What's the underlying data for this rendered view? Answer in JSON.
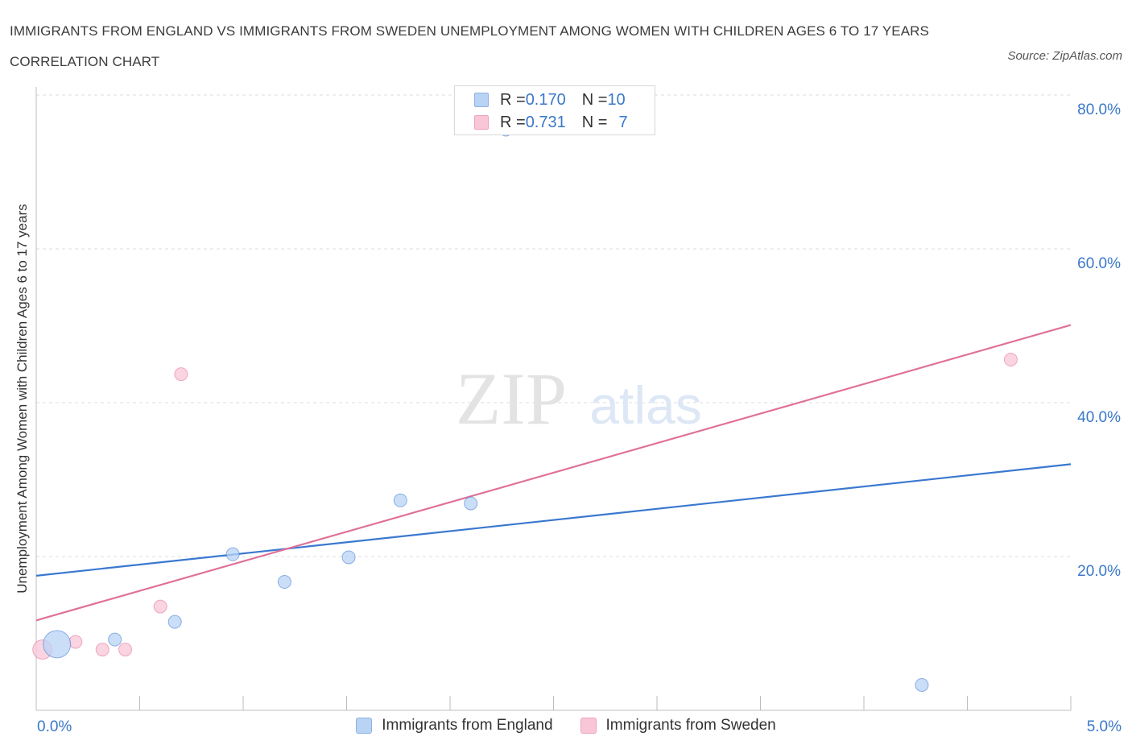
{
  "header": {
    "title": "IMMIGRANTS FROM ENGLAND VS IMMIGRANTS FROM SWEDEN UNEMPLOYMENT AMONG WOMEN WITH CHILDREN AGES 6 TO 17 YEARS CORRELATION CHART",
    "source": "Source: ZipAtlas.com"
  },
  "watermark": {
    "zip": "ZIP",
    "atlas": "atlas"
  },
  "legend_stats": [
    {
      "r_label": "R = ",
      "r_value": "0.170",
      "n_label": "N = ",
      "n_value": "10",
      "color": "#a9c7f0"
    },
    {
      "r_label": "R = ",
      "r_value": "0.731",
      "n_label": "N = ",
      "n_value": "7",
      "color": "#f6b8cb"
    }
  ],
  "chart_data": {
    "type": "scatter",
    "title": "IMMIGRANTS FROM ENGLAND VS IMMIGRANTS FROM SWEDEN UNEMPLOYMENT AMONG WOMEN WITH CHILDREN AGES 6 TO 17 YEARS CORRELATION CHART",
    "xlabel": "",
    "ylabel": "Unemployment Among Women with Children Ages 6 to 17 years",
    "xlim": [
      0,
      5
    ],
    "ylim": [
      0,
      80
    ],
    "x_tick_labels": [
      "0.0%",
      "5.0%"
    ],
    "y_ticks": [
      20,
      40,
      60,
      80
    ],
    "y_tick_labels": [
      "20.0%",
      "40.0%",
      "60.0%",
      "80.0%"
    ],
    "grid": true,
    "legend_position": "bottom",
    "series": [
      {
        "name": "Immigrants from England",
        "color": "#3a78d0",
        "fill": "#b9d3f5",
        "r": 0.17,
        "n": 10,
        "points": [
          {
            "x": 0.1,
            "y": 8.6,
            "size": "large"
          },
          {
            "x": 0.38,
            "y": 9.2
          },
          {
            "x": 0.67,
            "y": 11.5
          },
          {
            "x": 0.95,
            "y": 20.3
          },
          {
            "x": 1.2,
            "y": 16.7
          },
          {
            "x": 1.51,
            "y": 19.9
          },
          {
            "x": 1.76,
            "y": 27.3
          },
          {
            "x": 2.1,
            "y": 26.9
          },
          {
            "x": 2.27,
            "y": 75.5
          },
          {
            "x": 4.28,
            "y": 3.3
          }
        ],
        "trendline": {
          "x": [
            0,
            5
          ],
          "y": [
            17.5,
            32.0
          ]
        }
      },
      {
        "name": "Immigrants from Sweden",
        "color": "#e07099",
        "fill": "#f8c6d6",
        "r": 0.731,
        "n": 7,
        "points": [
          {
            "x": 0.03,
            "y": 7.9,
            "size": "medium"
          },
          {
            "x": 0.19,
            "y": 8.9
          },
          {
            "x": 0.32,
            "y": 7.9
          },
          {
            "x": 0.43,
            "y": 7.9
          },
          {
            "x": 0.6,
            "y": 13.5
          },
          {
            "x": 0.7,
            "y": 43.7
          },
          {
            "x": 4.71,
            "y": 45.6
          }
        ],
        "trendline": {
          "x": [
            0,
            5
          ],
          "y": [
            11.7,
            50.1
          ]
        }
      }
    ]
  }
}
